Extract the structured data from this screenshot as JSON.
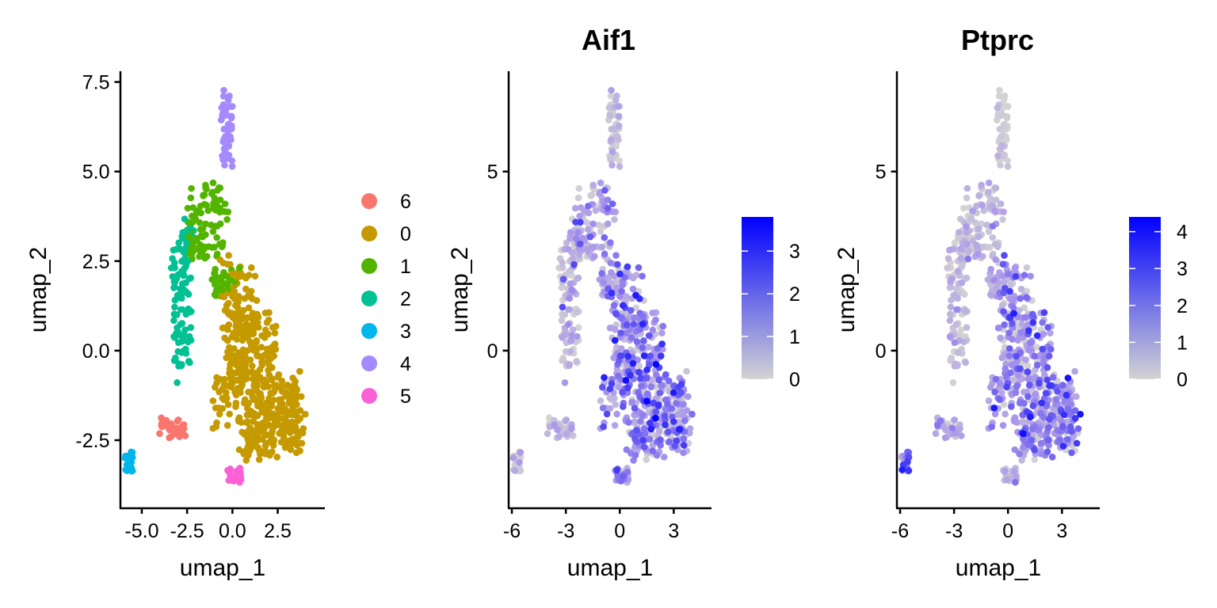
{
  "chart_data": [
    {
      "type": "scatter",
      "title": "",
      "xlabel": "umap_1",
      "ylabel": "umap_2",
      "xticks": [
        "-5.0",
        "-2.5",
        "0.0",
        "2.5"
      ],
      "yticks": [
        "-2.5",
        "0.0",
        "2.5",
        "5.0",
        "7.5"
      ],
      "xlim": [
        -6.2,
        5.1
      ],
      "ylim": [
        -4.4,
        7.8
      ],
      "legend_position": "right",
      "legend": [
        {
          "label": "6",
          "color": "#F8766D"
        },
        {
          "label": "0",
          "color": "#C49A00"
        },
        {
          "label": "1",
          "color": "#53B400"
        },
        {
          "label": "2",
          "color": "#00C094"
        },
        {
          "label": "3",
          "color": "#00B6EB"
        },
        {
          "label": "4",
          "color": "#A58AFF"
        },
        {
          "label": "5",
          "color": "#FB61D7"
        }
      ],
      "clusters": [
        {
          "name": "0",
          "color": "#C49A00",
          "regions": [
            [
              0.3,
              1.5,
              1.0,
              1.2,
              70
            ],
            [
              1.0,
              0.0,
              1.5,
              1.2,
              150
            ],
            [
              2.2,
              -1.8,
              1.8,
              1.2,
              260
            ],
            [
              -0.3,
              -1.5,
              1.0,
              1.0,
              40
            ]
          ]
        },
        {
          "name": "1",
          "color": "#53B400",
          "regions": [
            [
              -1.5,
              3.5,
              1.3,
              1.0,
              85
            ],
            [
              -0.5,
              1.9,
              0.9,
              0.4,
              30
            ],
            [
              -1.2,
              4.3,
              0.6,
              0.5,
              15
            ]
          ]
        },
        {
          "name": "2",
          "color": "#00C094",
          "regions": [
            [
              -2.8,
              1.2,
              0.6,
              2.0,
              95
            ],
            [
              -2.6,
              3.2,
              0.7,
              0.5,
              15
            ]
          ]
        },
        {
          "name": "3",
          "color": "#00B6EB",
          "regions": [
            [
              -5.7,
              -3.1,
              0.25,
              0.3,
              20
            ]
          ]
        },
        {
          "name": "4",
          "color": "#A58AFF",
          "regions": [
            [
              -0.3,
              6.2,
              0.35,
              1.1,
              50
            ]
          ]
        },
        {
          "name": "5",
          "color": "#FB61D7",
          "regions": [
            [
              0.1,
              -3.5,
              0.45,
              0.25,
              25
            ]
          ]
        },
        {
          "name": "6",
          "color": "#F8766D",
          "regions": [
            [
              -3.4,
              -2.2,
              0.9,
              0.3,
              32
            ]
          ]
        }
      ]
    },
    {
      "type": "scatter",
      "title": "Aif1",
      "xlabel": "umap_1",
      "ylabel": "umap_2",
      "xticks": [
        "-6",
        "-3",
        "0",
        "3"
      ],
      "yticks": [
        "0",
        "5"
      ],
      "xlim": [
        -6.2,
        5.1
      ],
      "ylim": [
        -4.4,
        7.8
      ],
      "colorbar": {
        "ticks": [
          "0",
          "1",
          "2",
          "3"
        ],
        "max": 3.8,
        "low_color": "#D3D3D3",
        "high_color": "#0000FF"
      },
      "expression_by_cluster": {
        "0": 1.9,
        "1": 1.5,
        "2": 0.9,
        "3": 0.1,
        "4": 0.3,
        "5": 1.8,
        "6": 0.9
      }
    },
    {
      "type": "scatter",
      "title": "Ptprc",
      "xlabel": "umap_1",
      "ylabel": "umap_2",
      "xticks": [
        "-6",
        "-3",
        "0",
        "3"
      ],
      "yticks": [
        "0",
        "5"
      ],
      "xlim": [
        -6.2,
        5.1
      ],
      "ylim": [
        -4.4,
        7.8
      ],
      "colorbar": {
        "ticks": [
          "0",
          "1",
          "2",
          "3",
          "4"
        ],
        "max": 4.4,
        "low_color": "#D3D3D3",
        "high_color": "#0000FF"
      },
      "expression_by_cluster": {
        "0": 2.2,
        "1": 1.0,
        "2": 0.6,
        "3": 2.8,
        "4": 0.2,
        "5": 1.2,
        "6": 1.6
      }
    }
  ]
}
